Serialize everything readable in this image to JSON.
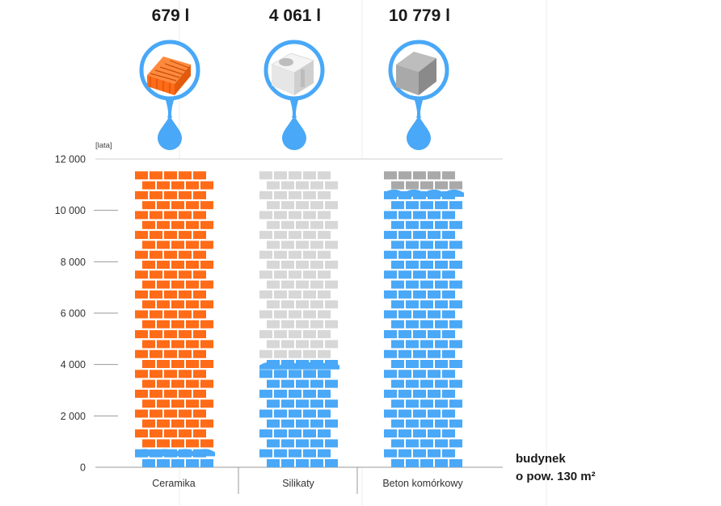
{
  "chart_data": {
    "type": "bar",
    "unit_label": "[lata]",
    "categories": [
      "Ceramika",
      "Silikaty",
      "Beton komórkowy"
    ],
    "totals": [
      "679 l",
      "4 061 l",
      "10 779 l"
    ],
    "values": [
      679,
      4061,
      10779
    ],
    "wall_height": 11500,
    "ylim": [
      0,
      12000
    ],
    "yticks": [
      0,
      2000,
      4000,
      6000,
      8000,
      10000,
      12000
    ],
    "ytick_labels": [
      "0",
      "2 000",
      "4 000",
      "6 000",
      "8 000",
      "10 000",
      "12 000"
    ],
    "material_colors": [
      "#ff6b17",
      "#d7d7d7",
      "#a9a9a9"
    ],
    "water_color": "#49a8f7",
    "icon_names": [
      "ceramic-block-icon",
      "silicate-block-icon",
      "aerated-concrete-block-icon"
    ],
    "grid": false,
    "annotation_lines": [
      "budynek",
      "o pow. 130 m²"
    ]
  }
}
